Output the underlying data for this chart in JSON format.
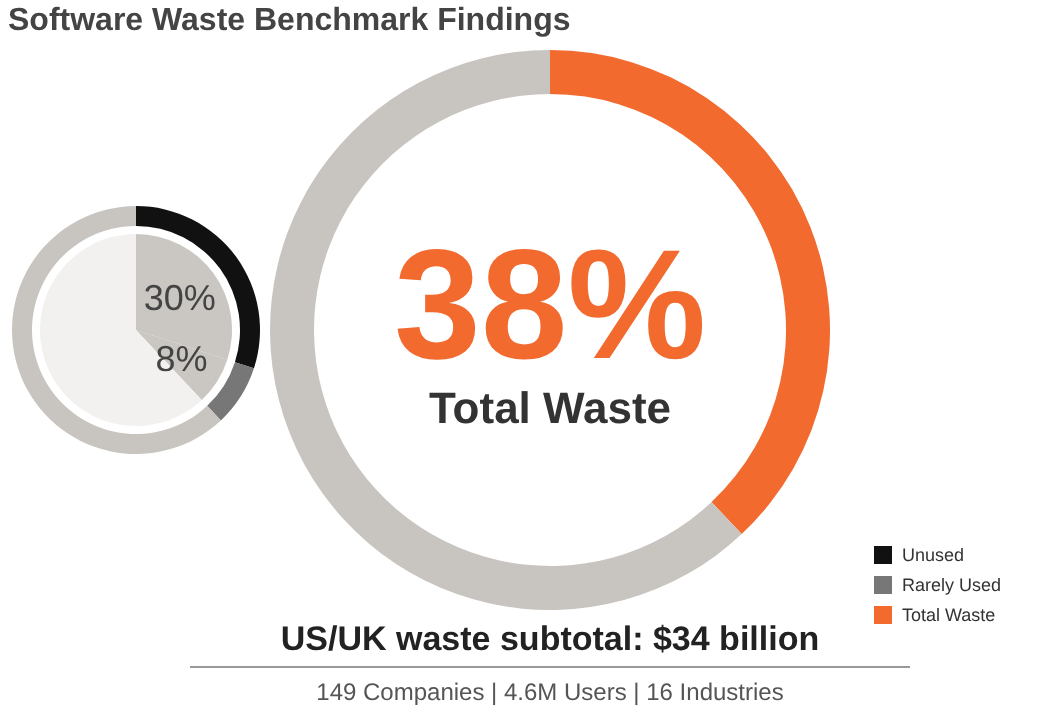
{
  "chart_data": [
    {
      "type": "donut",
      "title": "Software Waste Benchmark Findings",
      "categories": [
        "Unused",
        "Rarely Used",
        null
      ],
      "legend": "bottom right",
      "series": [
        {
          "type": "donut",
          "values": [
            30,
            8,
            62
          ],
          "colors": [
            "#111111",
            "#777777",
            "#c8c4c0"
          ]
        },
        {
          "type": "pie",
          "values": [
            30,
            8,
            62
          ],
          "colors": [
            "#cac6c2",
            "#cac6c2",
            "#f2f1ef"
          ],
          "value_labels": [
            "30%",
            "8%",
            null
          ]
        }
      ]
    },
    {
      "type": "donut",
      "categories": [
        "Total Waste",
        null
      ],
      "values": [
        38,
        62
      ],
      "colors": [
        "#f26a2e",
        "#c8c4c0"
      ],
      "value_labels": [
        "38%",
        null
      ],
      "legend": "bottom right",
      "annotations": [
        "US/UK waste subtotal: $34 billion",
        "149 Companies | 4.6M Users | 16 Industries"
      ]
    }
  ]
}
